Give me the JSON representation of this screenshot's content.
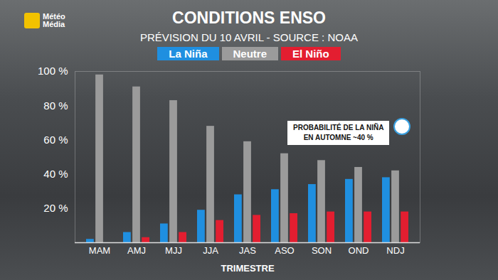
{
  "chart_data": {
    "type": "bar",
    "title": "CONDITIONS ENSO",
    "subtitle": "PRÉVISION DU 10 AVRIL - SOURCE : NOAA",
    "logo": "Météo Média",
    "x_label": "TRIMESTRE",
    "categories": [
      "MAM",
      "AMJ",
      "MJJ",
      "JJA",
      "JAS",
      "ASO",
      "SON",
      "OND",
      "NDJ"
    ],
    "series": [
      {
        "name": "La Niña",
        "color": "#1f8fe0",
        "values": [
          2,
          6,
          11,
          19,
          28,
          31,
          34,
          37,
          38
        ]
      },
      {
        "name": "Neutre",
        "color": "#9b9b9b",
        "values": [
          98,
          91,
          83,
          68,
          59,
          52,
          48,
          44,
          42
        ]
      },
      {
        "name": "El Niño",
        "color": "#e31e30",
        "values": [
          0,
          3,
          6,
          13,
          16,
          17,
          18,
          18,
          18
        ]
      }
    ],
    "ylim": [
      0,
      100
    ],
    "yticks": [
      {
        "value": 20,
        "label": "20 %"
      },
      {
        "value": 40,
        "label": "40 %"
      },
      {
        "value": 60,
        "label": "60 %"
      },
      {
        "value": 80,
        "label": "80 %"
      },
      {
        "value": 100,
        "label": "100 %"
      }
    ],
    "grid": false,
    "legend": "top",
    "annotation": [
      "PROBABILITÉ DE LA NIÑA",
      "EN AUTOMNE ~40 %"
    ]
  }
}
